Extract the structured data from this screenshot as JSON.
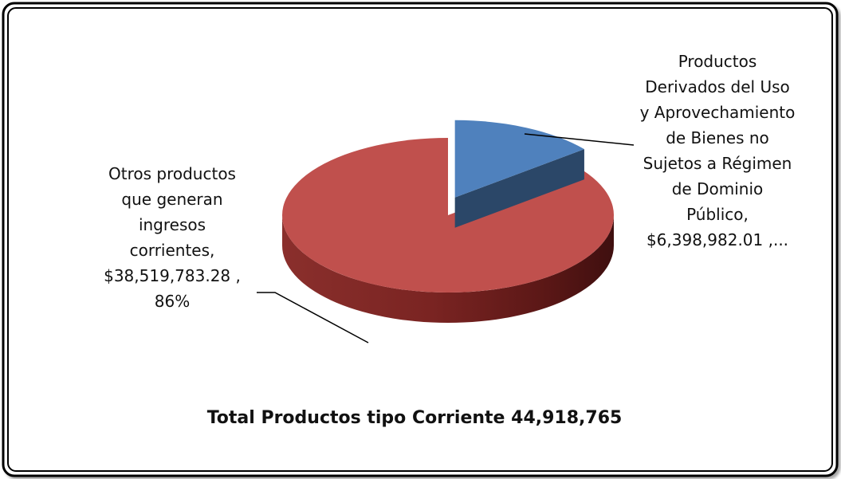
{
  "chart_data": {
    "type": "pie",
    "series": [
      {
        "label_lines": [
          "Productos",
          "Derivados del Uso",
          "y Aprovechamiento",
          "de Bienes no",
          "Sujetos a Régimen",
          "de Dominio",
          "Público,",
          "$6,398,982.01 ,..."
        ],
        "value": 6398982.01,
        "color": "#4F81BD",
        "exploded": true
      },
      {
        "label_lines": [
          "Otros productos",
          "que generan",
          "ingresos",
          "corrientes,",
          "$38,519,783.28 ,",
          "86%"
        ],
        "value": 38519783.28,
        "percent": 86,
        "color": "#C0504D",
        "exploded": false
      }
    ],
    "total_label": "Total Productos  tipo Corriente  44,918,765"
  }
}
